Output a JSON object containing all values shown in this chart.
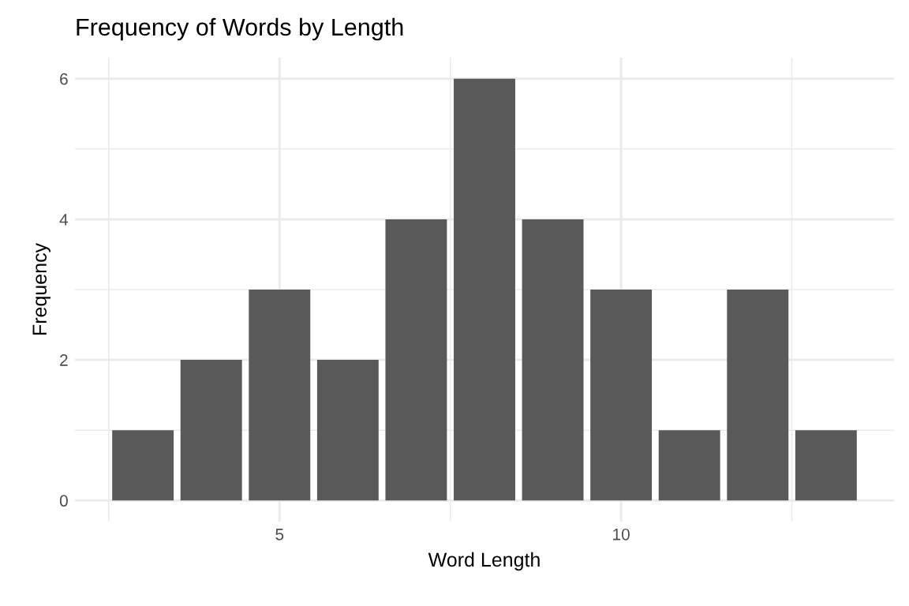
{
  "chart_data": {
    "type": "bar",
    "title": "Frequency of Words by Length",
    "xlabel": "Word Length",
    "ylabel": "Frequency",
    "x": [
      3,
      4,
      5,
      6,
      7,
      8,
      9,
      10,
      11,
      12,
      13
    ],
    "values": [
      1,
      2,
      3,
      2,
      4,
      6,
      4,
      3,
      1,
      3,
      1
    ],
    "color": "#595959",
    "xlim": [
      2.005,
      13.995
    ],
    "xticks": [
      {
        "value": 2.5,
        "label": null
      },
      5,
      {
        "value": 7.5,
        "label": null
      },
      10,
      {
        "value": 12.5,
        "label": null
      }
    ],
    "ylim": [
      -0.3,
      6.3
    ],
    "yticks": [
      0,
      {
        "value": 1,
        "label": null
      },
      2,
      {
        "value": 3,
        "label": null
      },
      4,
      {
        "value": 5,
        "label": null
      },
      6
    ],
    "grid": true
  }
}
